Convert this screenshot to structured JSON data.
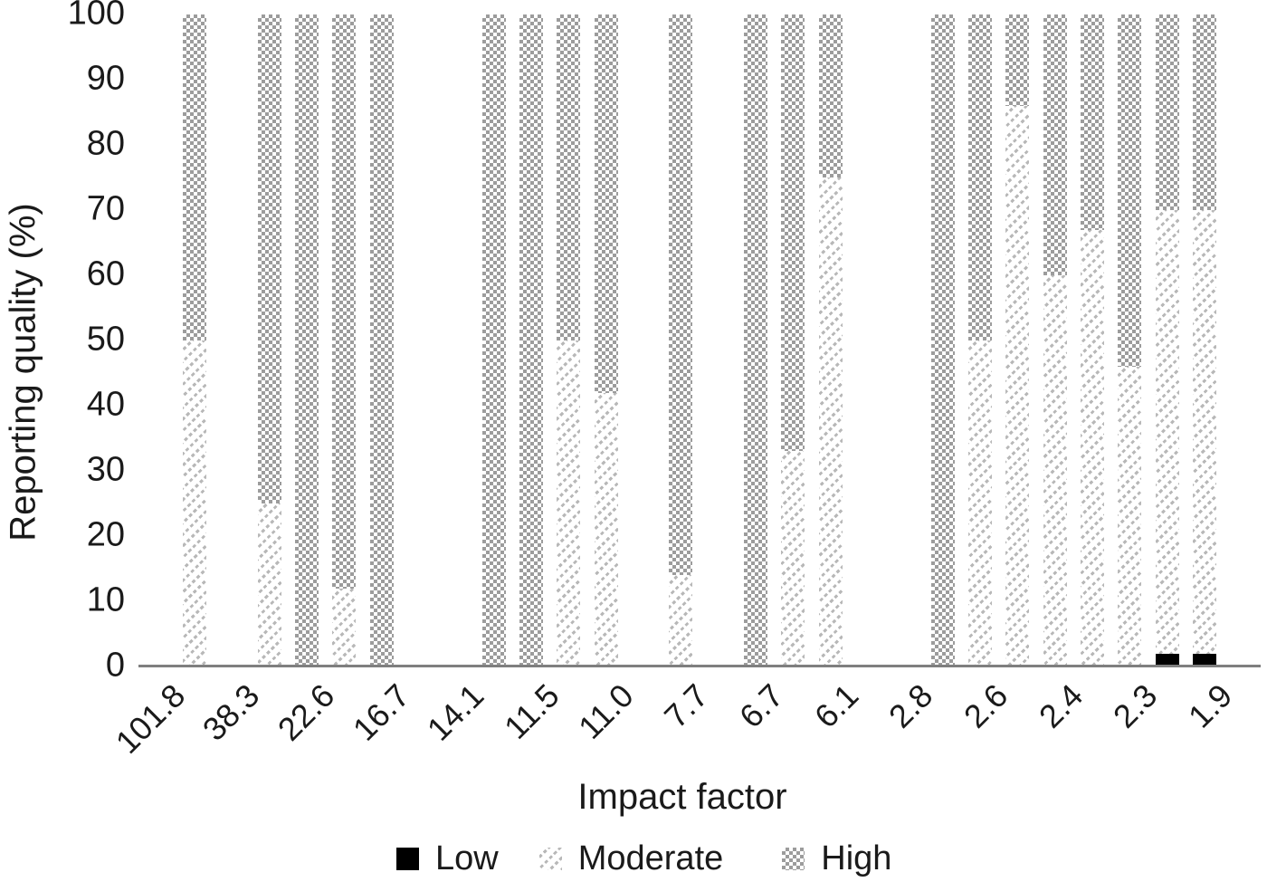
{
  "chart_data": {
    "type": "bar",
    "subtype": "stacked-percent",
    "title": "",
    "xlabel": "Impact factor",
    "ylabel": "Reporting quality (%)",
    "ylim": [
      0,
      100
    ],
    "grid": false,
    "legend_position": "bottom-center",
    "yticks": [
      "0",
      "10",
      "20",
      "30",
      "40",
      "50",
      "60",
      "70",
      "80",
      "90",
      "100"
    ],
    "x_tick_labels": [
      "101.8",
      "38.3",
      "22.6",
      "16.7",
      "14.1",
      "11.5",
      "11.0",
      "7.7",
      "6.7",
      "6.1",
      "2.8",
      "2.6",
      "2.4",
      "2.3",
      "1.9"
    ],
    "label_slots": [
      0,
      2,
      4,
      6,
      8,
      10,
      12,
      14,
      16,
      18,
      20,
      22,
      24,
      26,
      28
    ],
    "n_slots": 30,
    "legend": [
      {
        "label": "Low",
        "key": "low",
        "pattern": "solid-black-square"
      },
      {
        "label": "Moderate",
        "key": "moderate",
        "pattern": "diagonal-hatch-square"
      },
      {
        "label": "High",
        "key": "high",
        "pattern": "checker-square"
      }
    ],
    "series_note": "each bar totals 100%; segments bottom-to-top: Low, Moderate, High",
    "bars": [
      {
        "slot": 1,
        "low": 0,
        "moderate": 50,
        "high": 50
      },
      {
        "slot": 3,
        "low": 0,
        "moderate": 25,
        "high": 75
      },
      {
        "slot": 4,
        "low": 0,
        "moderate": 0,
        "high": 100
      },
      {
        "slot": 5,
        "low": 0,
        "moderate": 12,
        "high": 88
      },
      {
        "slot": 6,
        "low": 0,
        "moderate": 0,
        "high": 100
      },
      {
        "slot": 9,
        "low": 0,
        "moderate": 0,
        "high": 100
      },
      {
        "slot": 10,
        "low": 0,
        "moderate": 0,
        "high": 100
      },
      {
        "slot": 11,
        "low": 0,
        "moderate": 50,
        "high": 50
      },
      {
        "slot": 12,
        "low": 0,
        "moderate": 42,
        "high": 58
      },
      {
        "slot": 14,
        "low": 0,
        "moderate": 14,
        "high": 86
      },
      {
        "slot": 16,
        "low": 0,
        "moderate": 0,
        "high": 100
      },
      {
        "slot": 17,
        "low": 0,
        "moderate": 33,
        "high": 67
      },
      {
        "slot": 18,
        "low": 0,
        "moderate": 75,
        "high": 25
      },
      {
        "slot": 21,
        "low": 0,
        "moderate": 0,
        "high": 100
      },
      {
        "slot": 22,
        "low": 0,
        "moderate": 50,
        "high": 50
      },
      {
        "slot": 23,
        "low": 0,
        "moderate": 86,
        "high": 14
      },
      {
        "slot": 24,
        "low": 0,
        "moderate": 60,
        "high": 40
      },
      {
        "slot": 25,
        "low": 0,
        "moderate": 67,
        "high": 33
      },
      {
        "slot": 26,
        "low": 0,
        "moderate": 46,
        "high": 54
      },
      {
        "slot": 27,
        "low": 2,
        "moderate": 68,
        "high": 30
      },
      {
        "slot": 28,
        "low": 2,
        "moderate": 68,
        "high": 30
      }
    ],
    "colors": {
      "low": "#000000",
      "moderate_hatch_gray": "#b8b8b8",
      "high_checker_gray": "#9c9c9c",
      "axis_line_gray": "#7f7f7f",
      "text": "#1a1a1a"
    }
  }
}
